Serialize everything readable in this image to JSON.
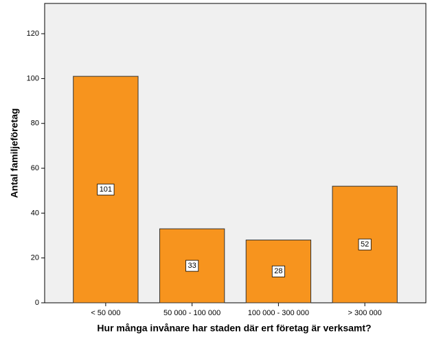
{
  "chart_data": {
    "type": "bar",
    "x_label": "Hur många invånare har staden där ert företag är verksamt?",
    "y_label": "Antal familjeföretag",
    "categories": [
      "< 50 000",
      "50 000 - 100 000",
      "100 000 - 300 000",
      "> 300 000"
    ],
    "values": [
      101,
      33,
      28,
      52
    ],
    "color": "#f7941e",
    "ylim": [
      0,
      133.5
    ],
    "yticks": [
      0,
      20,
      40,
      60,
      80,
      100,
      120
    ],
    "grid": false
  }
}
